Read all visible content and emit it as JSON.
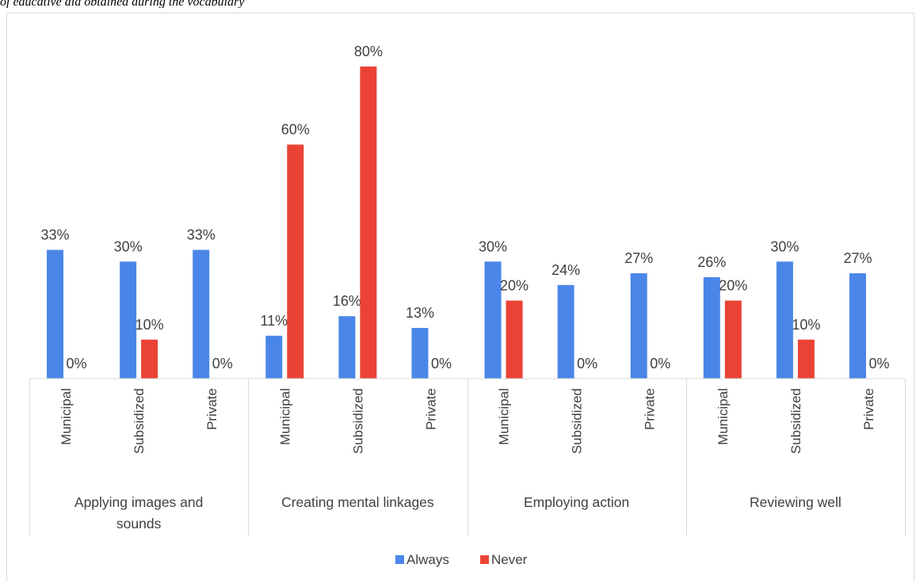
{
  "caption": "of educative aid obtained during the vocabulary",
  "chart_data": {
    "type": "bar",
    "groups": [
      {
        "label_lines": [
          "Applying images and",
          "sounds"
        ],
        "subcategories": [
          "Municipal",
          "Subsidized",
          "Private"
        ]
      },
      {
        "label_lines": [
          "Creating mental linkages"
        ],
        "subcategories": [
          "Municipal",
          "Subsidized",
          "Private"
        ]
      },
      {
        "label_lines": [
          "Employing action"
        ],
        "subcategories": [
          "Municipal",
          "Subsidized",
          "Private"
        ]
      },
      {
        "label_lines": [
          "Reviewing well"
        ],
        "subcategories": [
          "Municipal",
          "Subsidized",
          "Private"
        ]
      }
    ],
    "series": [
      {
        "name": "Always",
        "color": "#4a86e8",
        "values": [
          33,
          30,
          33,
          11,
          16,
          13,
          30,
          24,
          27,
          26,
          30,
          27
        ],
        "labels": [
          "33%",
          "30%",
          "33%",
          "11%",
          "16%",
          "13%",
          "30%",
          "24%",
          "27%",
          "26%",
          "30%",
          "27%"
        ]
      },
      {
        "name": "Never",
        "color": "#ea4335",
        "values": [
          0,
          10,
          0,
          60,
          80,
          0,
          20,
          0,
          0,
          20,
          10,
          0
        ],
        "labels": [
          "0%",
          "10%",
          "0%",
          "60%",
          "80%",
          "0%",
          "20%",
          "0%",
          "0%",
          "20%",
          "10%",
          "0%"
        ]
      }
    ],
    "y_unit": "%",
    "ylim": [
      0,
      80
    ],
    "grid": false,
    "legend_position": "bottom"
  }
}
